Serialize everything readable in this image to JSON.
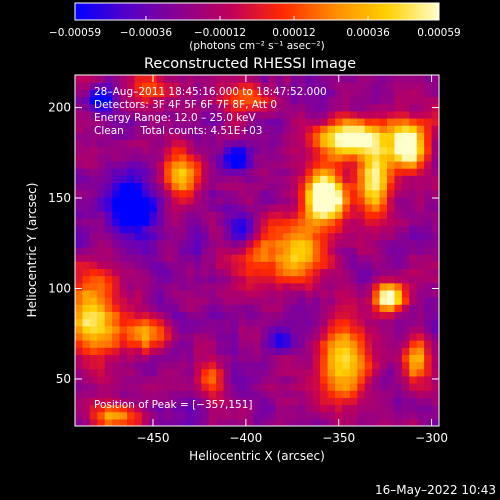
{
  "chart_data": {
    "type": "heatmap",
    "title": "Reconstructed RHESSI Image",
    "xlabel": "Heliocentric X (arcsec)",
    "ylabel": "Heliocentric Y (arcsec)",
    "xlim": [
      -492,
      -296
    ],
    "ylim": [
      24,
      218
    ],
    "x_ticks": [
      -450,
      -400,
      -350,
      -300
    ],
    "x_tick_labels": [
      "−450",
      "−400",
      "−350",
      "−300"
    ],
    "y_ticks": [
      50,
      100,
      150,
      200
    ],
    "y_tick_labels": [
      "50",
      "100",
      "150",
      "200"
    ],
    "colorbar": {
      "min": -0.00059,
      "max": 0.00059,
      "tick_labels": [
        "−0.00059",
        "−0.00036",
        "−0.00012",
        "0.00012",
        "0.00036",
        "0.00059"
      ],
      "tick_values": [
        -0.00059,
        -0.00036,
        -0.00012,
        0.00012,
        0.00036,
        0.00059
      ],
      "units_label": "(photons cm⁻² s⁻¹ asec⁻²)",
      "colormap": [
        "#0000ff",
        "#5500c8",
        "#8a0090",
        "#c0005a",
        "#ff2a00",
        "#ff8c00",
        "#ffd000",
        "#ffffcc"
      ]
    },
    "annotations": {
      "time_range": "28–Aug–2011 18:45:16.000 to 18:47:52.000",
      "detectors": "Detectors: 3F 4F 5F 6F 7F 8F, Att 0",
      "energy_range": "Energy Range: 12.0 – 25.0 keV",
      "method_counts": "Clean     Total counts: 4.51E+03",
      "peak_position": "Position of Peak = [−357,151]"
    },
    "peak": [
      -357,
      151
    ],
    "sources": [
      {
        "x": -357,
        "y": 151,
        "sx": 8,
        "sy": 10,
        "amp": 1.0
      },
      {
        "x": -344,
        "y": 183,
        "sx": 14,
        "sy": 7,
        "amp": 0.82
      },
      {
        "x": -330,
        "y": 160,
        "sx": 6,
        "sy": 14,
        "amp": 0.72
      },
      {
        "x": -312,
        "y": 180,
        "sx": 7,
        "sy": 10,
        "amp": 0.78
      },
      {
        "x": -370,
        "y": 120,
        "sx": 9,
        "sy": 12,
        "amp": 0.55
      },
      {
        "x": -323,
        "y": 95,
        "sx": 6,
        "sy": 6,
        "amp": 0.85
      },
      {
        "x": -348,
        "y": 60,
        "sx": 9,
        "sy": 15,
        "amp": 0.65
      },
      {
        "x": -395,
        "y": 120,
        "sx": 9,
        "sy": 11,
        "amp": 0.55
      },
      {
        "x": -435,
        "y": 164,
        "sx": 7,
        "sy": 10,
        "amp": 0.55
      },
      {
        "x": -482,
        "y": 85,
        "sx": 9,
        "sy": 17,
        "amp": 0.65
      },
      {
        "x": -455,
        "y": 75,
        "sx": 7,
        "sy": 8,
        "amp": 0.45
      },
      {
        "x": -420,
        "y": 50,
        "sx": 6,
        "sy": 7,
        "amp": 0.42
      },
      {
        "x": -308,
        "y": 60,
        "sx": 5,
        "sy": 9,
        "amp": 0.5
      },
      {
        "x": -470,
        "y": 30,
        "sx": 8,
        "sy": 5,
        "amp": 0.5
      },
      {
        "x": -400,
        "y": 205,
        "sx": 10,
        "sy": 6,
        "amp": 0.3
      },
      {
        "x": -450,
        "y": 210,
        "sx": 10,
        "sy": 6,
        "amp": 0.35
      }
    ],
    "negatives": [
      {
        "x": -460,
        "y": 145,
        "sx": 8,
        "sy": 10,
        "amp": 0.55
      },
      {
        "x": -402,
        "y": 130,
        "sx": 6,
        "sy": 8,
        "amp": 0.5
      },
      {
        "x": -478,
        "y": 205,
        "sx": 5,
        "sy": 5,
        "amp": 0.4
      },
      {
        "x": -405,
        "y": 172,
        "sx": 5,
        "sy": 5,
        "amp": 0.35
      },
      {
        "x": -380,
        "y": 72,
        "sx": 5,
        "sy": 5,
        "amp": 0.35
      }
    ]
  },
  "footer": {
    "timestamp": "16–May–2022 10:43"
  }
}
